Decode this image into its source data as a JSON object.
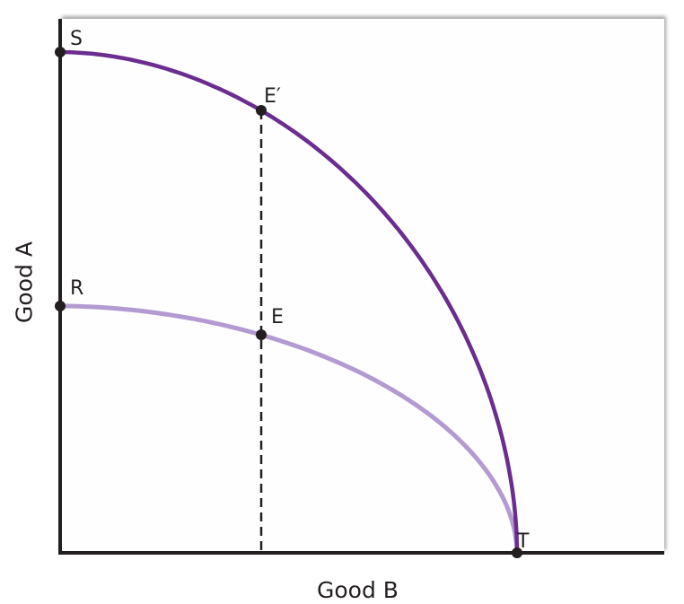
{
  "axes": {
    "x_label": "Good B",
    "y_label": "Good A"
  },
  "points": {
    "S": "S",
    "E_prime": "E′",
    "R": "R",
    "E": "E",
    "T": "T"
  },
  "colors": {
    "outer_curve": "#6b2d8f",
    "inner_curve": "#b39bd1",
    "axis": "#231f20",
    "dashed": "#231f20"
  }
}
